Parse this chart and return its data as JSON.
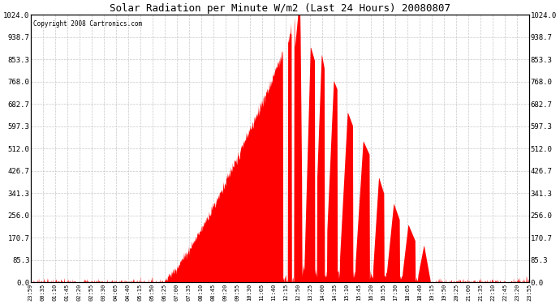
{
  "title": "Solar Radiation per Minute W/m2 (Last 24 Hours) 20080807",
  "copyright": "Copyright 2008 Cartronics.com",
  "bg_color": "#ffffff",
  "fill_color": "#ff0000",
  "dashed_line_color": "#ff0000",
  "grid_color": "#c8c8c8",
  "ylim": [
    0.0,
    1024.0
  ],
  "yticks": [
    0.0,
    85.3,
    170.7,
    256.0,
    341.3,
    426.7,
    512.0,
    597.3,
    682.7,
    768.0,
    853.3,
    938.7,
    1024.0
  ],
  "ytick_labels": [
    "0.0",
    "85.3",
    "170.7",
    "256.0",
    "341.3",
    "426.7",
    "512.0",
    "597.3",
    "682.7",
    "768.0",
    "853.3",
    "938.7",
    "1024.0"
  ],
  "xtick_labels": [
    "23:59",
    "00:35",
    "01:10",
    "01:45",
    "02:20",
    "02:55",
    "03:30",
    "04:05",
    "04:40",
    "05:15",
    "05:50",
    "06:25",
    "07:00",
    "07:35",
    "08:10",
    "08:45",
    "09:20",
    "09:55",
    "10:30",
    "11:05",
    "11:40",
    "12:15",
    "12:50",
    "13:25",
    "14:00",
    "14:35",
    "15:10",
    "15:45",
    "16:20",
    "16:55",
    "17:30",
    "18:05",
    "18:40",
    "19:15",
    "19:50",
    "20:25",
    "21:00",
    "21:35",
    "22:10",
    "22:45",
    "23:20",
    "23:55"
  ],
  "num_minutes": 1440,
  "day_start": 378,
  "day_end": 1155,
  "peak_minute": 770,
  "peak_value": 1024.0
}
